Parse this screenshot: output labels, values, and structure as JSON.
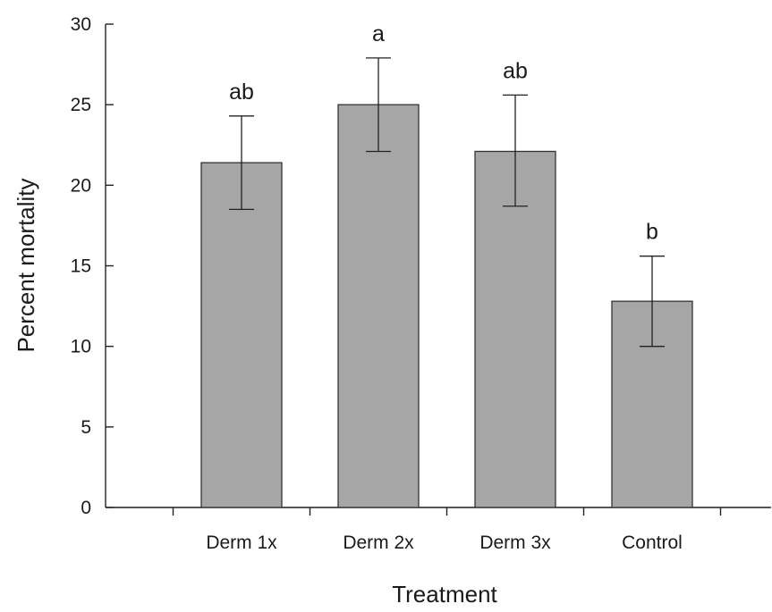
{
  "chart_data": {
    "type": "bar",
    "title": "",
    "xlabel": "Treatment",
    "ylabel": "Percent mortality",
    "categories": [
      "Derm 1x",
      "Derm 2x",
      "Derm 3x",
      "Control"
    ],
    "values": [
      21.4,
      25.0,
      22.1,
      12.8
    ],
    "error_high": [
      24.3,
      27.9,
      25.6,
      15.6
    ],
    "error_low": [
      18.5,
      22.1,
      18.7,
      10.0
    ],
    "significance_labels": [
      "ab",
      "a",
      "ab",
      "b"
    ],
    "ylim": [
      0,
      30
    ],
    "yticks": [
      0,
      5,
      10,
      15,
      20,
      25,
      30
    ],
    "grid": false,
    "bar_color": "#a6a6a6",
    "bar_edge_color": "#333333"
  }
}
